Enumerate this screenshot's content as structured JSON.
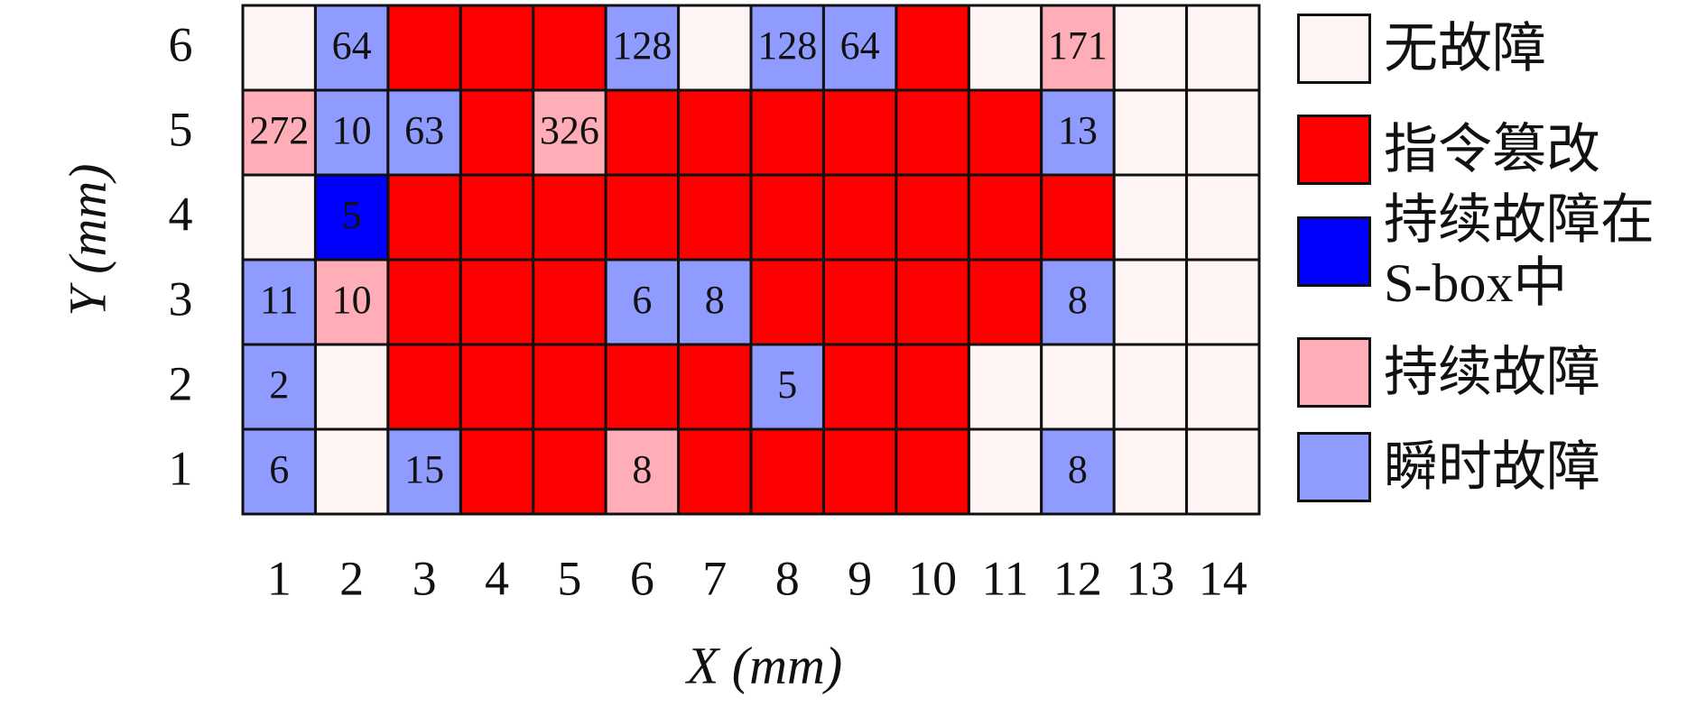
{
  "chart_data": {
    "type": "heatmap",
    "xlabel": "X (mm)",
    "ylabel": "Y (mm)",
    "xlim": [
      0.5,
      14.5
    ],
    "ylim": [
      0.5,
      6.5
    ],
    "xticks": [
      1,
      2,
      3,
      4,
      5,
      6,
      7,
      8,
      9,
      10,
      11,
      12,
      13,
      14
    ],
    "yticks": [
      1,
      2,
      3,
      4,
      5,
      6
    ],
    "series": [
      {
        "name": "无故障",
        "color": "#fff5f5",
        "x": [
          1,
          7,
          11,
          13,
          14,
          13,
          14,
          1,
          13,
          14,
          13,
          14,
          2,
          11,
          12,
          13,
          14,
          2,
          11,
          13,
          14
        ],
        "y": [
          6,
          6,
          6,
          6,
          6,
          5,
          5,
          4,
          4,
          4,
          3,
          3,
          2,
          2,
          2,
          2,
          2,
          1,
          1,
          1,
          1
        ]
      },
      {
        "name": "指令篡改",
        "color": "#ff0000",
        "x": [
          3,
          4,
          5,
          10,
          4,
          6,
          7,
          8,
          9,
          10,
          11,
          3,
          4,
          5,
          6,
          7,
          8,
          9,
          10,
          11,
          12,
          3,
          4,
          5,
          8,
          9,
          10,
          11,
          3,
          4,
          5,
          6,
          7,
          9,
          10,
          4,
          5,
          7,
          8,
          9,
          10
        ],
        "y": [
          6,
          6,
          6,
          6,
          5,
          5,
          5,
          5,
          5,
          5,
          5,
          4,
          4,
          4,
          4,
          4,
          4,
          4,
          4,
          4,
          4,
          3,
          3,
          3,
          3,
          3,
          3,
          3,
          2,
          2,
          2,
          2,
          2,
          2,
          2,
          1,
          1,
          1,
          1,
          1,
          1
        ]
      },
      {
        "name": "持续故障在S-box中",
        "color": "#0000ff",
        "text_color": "#ffffff",
        "x": [
          2
        ],
        "y": [
          4
        ],
        "values": [
          5
        ]
      },
      {
        "name": "持续故障",
        "color": "#ffaeb7",
        "x": [
          12,
          1,
          5,
          2,
          6
        ],
        "y": [
          6,
          5,
          5,
          3,
          1
        ],
        "values": [
          171,
          272,
          326,
          10,
          8
        ]
      },
      {
        "name": "瞬时故障",
        "color": "#8f9bff",
        "x": [
          2,
          6,
          8,
          9,
          2,
          3,
          12,
          1,
          6,
          7,
          12,
          1,
          8,
          1,
          3,
          12
        ],
        "y": [
          6,
          6,
          6,
          6,
          5,
          5,
          5,
          3,
          3,
          3,
          3,
          2,
          2,
          1,
          1,
          1
        ],
        "values": [
          64,
          128,
          128,
          64,
          10,
          63,
          13,
          11,
          6,
          8,
          8,
          2,
          5,
          6,
          15,
          8
        ]
      }
    ]
  }
}
